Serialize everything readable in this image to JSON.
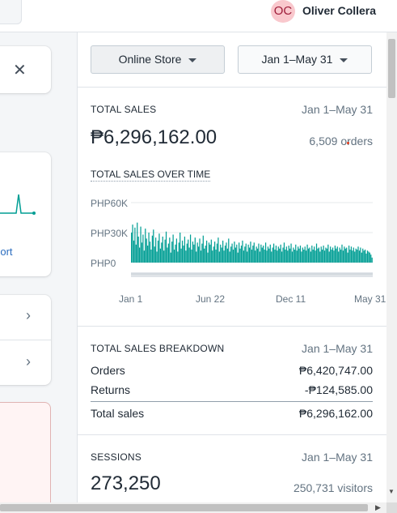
{
  "topbar": {
    "avatar_initials": "OC",
    "user_name": "Oliver Collera"
  },
  "left": {
    "close_icon": "close-icon",
    "report_link": "View report",
    "chevron_icon": "chevron-right-icon"
  },
  "filters": {
    "store_label": "Online Store",
    "date_label": "Jan 1–May 31"
  },
  "total_sales": {
    "title": "TOTAL SALES",
    "date": "Jan 1–May 31",
    "value": "₱6,296,162.00",
    "orders": "6,509 orders",
    "chart_title": "TOTAL SALES OVER TIME",
    "y_labels": [
      "PHP60K",
      "PHP30K",
      "PHP0"
    ],
    "x_labels": [
      "Jan 1",
      "Jun 22",
      "Dec 11",
      "May 31"
    ]
  },
  "breakdown": {
    "title": "TOTAL SALES BREAKDOWN",
    "date": "Jan 1–May 31",
    "rows": [
      {
        "label": "Orders",
        "value": "₱6,420,747.00"
      },
      {
        "label": "Returns",
        "value": "-₱124,585.00"
      },
      {
        "label": "Total sales",
        "value": "₱6,296,162.00"
      }
    ]
  },
  "sessions": {
    "title": "SESSIONS",
    "date": "Jan 1–May 31",
    "value": "273,250",
    "visitors": "250,731 visitors"
  },
  "colors": {
    "accent": "#009e94",
    "link": "#2b6dbf",
    "avatar_bg": "#f9c8cd"
  },
  "chart_data": {
    "type": "bar",
    "title": "TOTAL SALES OVER TIME",
    "xlabel": "",
    "ylabel": "",
    "x_ticks": [
      "Jan 1",
      "Jun 22",
      "Dec 11",
      "May 31"
    ],
    "y_ticks": [
      "PHP0",
      "PHP30K",
      "PHP60K"
    ],
    "ylim": [
      0,
      60000
    ],
    "series": [
      {
        "values": [
          30000,
          38000,
          22000,
          35000,
          18000,
          40000,
          26000,
          15000,
          36000,
          20000,
          28000,
          12000,
          34000,
          24000,
          17000,
          30000,
          21000,
          13000,
          27000,
          33000,
          16000,
          25000,
          11000,
          22000,
          29000,
          14000,
          20000,
          26000,
          12000,
          23000,
          31000,
          15000,
          19000,
          25000,
          10000,
          21000,
          28000,
          13000,
          18000,
          24000,
          11000,
          20000,
          30000,
          14000,
          22000,
          17000,
          26000,
          12000,
          19000,
          23000,
          15000,
          28000,
          13000,
          21000,
          18000,
          25000,
          11000,
          20000,
          16000,
          24000,
          12000,
          19000,
          27000,
          14000,
          17000,
          22000,
          10000,
          20000,
          18000,
          23000,
          12000,
          16000,
          21000,
          13000,
          19000,
          25000,
          11000,
          18000,
          15000,
          22000,
          12000,
          17000,
          20000,
          14000,
          24000,
          11000,
          16000,
          19000,
          13000,
          21000,
          15000,
          18000,
          10000,
          20000,
          14000,
          17000,
          22000,
          12000,
          16000,
          19000,
          11000,
          18000,
          15000,
          21000,
          13000,
          17000,
          20000,
          12000,
          16000,
          14000,
          19000,
          11000,
          18000,
          15000,
          17000,
          13000,
          20000,
          12000,
          16000,
          14000,
          18000,
          11000,
          15000,
          19000,
          13000,
          17000,
          12000,
          16000,
          14000,
          18000,
          11000,
          15000,
          20000,
          13000,
          16000,
          12000,
          17000,
          14000,
          19000,
          11000,
          15000,
          13000,
          18000,
          12000,
          16000,
          14000,
          17000,
          11000,
          15000,
          13000,
          16000,
          12000,
          18000,
          14000,
          15000,
          11000,
          17000,
          13000,
          16000,
          12000,
          19000,
          14000,
          15000,
          11000,
          16000,
          13000,
          17000,
          12000,
          15000,
          14000,
          18000,
          11000,
          16000,
          13000,
          15000,
          12000,
          17000,
          14000,
          16000,
          11000,
          15000,
          13000,
          18000,
          12000,
          16000,
          14000,
          15000,
          10000,
          17000,
          13000,
          16000,
          12000,
          15000,
          11000,
          14000,
          13000,
          16000,
          12000,
          15000,
          10000,
          14000,
          12000,
          13000,
          9000,
          12000,
          11000,
          10000,
          8000,
          5000
        ]
      }
    ]
  }
}
